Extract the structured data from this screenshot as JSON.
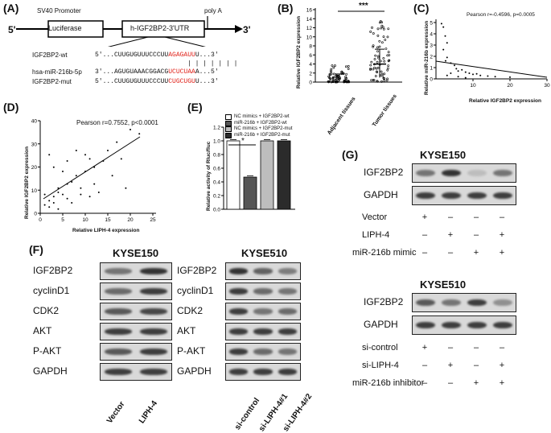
{
  "A": {
    "letter": "(A)",
    "five": "5'",
    "three": "3'",
    "sv40": "SV40 Promoter",
    "polyA": "poly A",
    "luc": "Luciferase",
    "utr": "h-IGF2BP2-3'UTR",
    "wt_label": "IGF2BP2-wt",
    "wt_seq_a": "5'...CUUGUGUUUCCCUU",
    "wt_seq_red": "AGAGAUU",
    "wt_seq_b": "U...3'",
    "mir_label": "hsa-miR-216b-5p",
    "mir_seq_a": "3'...AGUGUAAACGGACG",
    "mir_seq_red": "UCUCUAA",
    "mir_seq_b": "A...5'",
    "pair": "| | | | | | |",
    "mut_label": "IGF2BP2-mut",
    "mut_seq_a": "5'...CUUGUGUUUCCCUU",
    "mut_seq_red": "CUGCUGU",
    "mut_seq_b": "U...3'"
  },
  "B": {
    "letter": "(B)",
    "ylabel": "Relative IGF2BP2 expression",
    "sig": "***",
    "yticks": [
      "0",
      "2",
      "4",
      "6",
      "8",
      "10",
      "12",
      "14",
      "16"
    ],
    "groups": [
      "Adjacent tissues",
      "Tumor tissues"
    ]
  },
  "C": {
    "letter": "(C)",
    "stat": "Pearson r=-0.4596, p=0.0005",
    "ylabel": "Relative miR-216b expression",
    "xlabel": "Relative IGF2BP2 expression",
    "yticks": [
      "0",
      "1",
      "2",
      "3",
      "4",
      "5"
    ],
    "xticks": [
      "10",
      "20",
      "30"
    ]
  },
  "D": {
    "letter": "(D)",
    "stat": "Pearson r=0.7552, p<0.0001",
    "ylabel": "Relative IGF2BP2 expression",
    "xlabel": "Relative LIPH-4 expression",
    "yticks": [
      "0",
      "10",
      "20",
      "30",
      "40"
    ],
    "xticks": [
      "0",
      "5",
      "10",
      "15",
      "20",
      "25"
    ]
  },
  "E": {
    "letter": "(E)",
    "ylabel": "Relative activity of Rluc/fluc",
    "sig": "*",
    "yticks": [
      "0.0",
      "0.2",
      "0.4",
      "0.6",
      "0.8",
      "1.0",
      "1.2"
    ],
    "legend": [
      "NC mimics + IGF2BP2-wt",
      "miR-216b + IGF2BP2-wt",
      "NC mimics + IGF2BP2-mut",
      "miR-216b + IGF2BP2-mut"
    ]
  },
  "chart_data": [
    {
      "type": "bar",
      "title": "",
      "ylabel": "Relative activity of Rluc/fluc",
      "categories": [
        "NC mimics + IGF2BP2-wt",
        "miR-216b + IGF2BP2-wt",
        "NC mimics + IGF2BP2-mut",
        "miR-216b + IGF2BP2-mut"
      ],
      "values": [
        1.0,
        0.47,
        1.0,
        1.0
      ],
      "ylim": [
        0,
        1.2
      ],
      "colors": [
        "#ffffff",
        "#555555",
        "#bdbdbd",
        "#2b2b2b"
      ]
    }
  ],
  "F": {
    "letter": "(F)",
    "left_title": "KYSE150",
    "right_title": "KYSE510",
    "rows": [
      "IGF2BP2",
      "cyclinD1",
      "CDK2",
      "AKT",
      "P-AKT",
      "GAPDH"
    ],
    "left_lanes": [
      "Vector",
      "LIPH-4"
    ],
    "right_lanes": [
      "si-control",
      "si-LIPH-4#1",
      "si-LIPH-4#2"
    ]
  },
  "G": {
    "letter": "(G)",
    "top_title": "KYSE150",
    "bottom_title": "KYSE510",
    "rows": [
      "IGF2BP2",
      "GAPDH"
    ],
    "top_conditions": [
      {
        "label": "Vector",
        "signs": [
          "+",
          "–",
          "–",
          "–"
        ]
      },
      {
        "label": "LIPH-4",
        "signs": [
          "–",
          "+",
          "–",
          "+"
        ]
      },
      {
        "label": "miR-216b mimic",
        "signs": [
          "–",
          "–",
          "+",
          "+"
        ]
      }
    ],
    "bottom_conditions": [
      {
        "label": "si-control",
        "signs": [
          "+",
          "–",
          "–",
          "–"
        ]
      },
      {
        "label": "si-LIPH-4",
        "signs": [
          "–",
          "+",
          "–",
          "+"
        ]
      },
      {
        "label": "miR-216b inhibitor",
        "signs": [
          "–",
          "–",
          "+",
          "+"
        ]
      }
    ]
  }
}
